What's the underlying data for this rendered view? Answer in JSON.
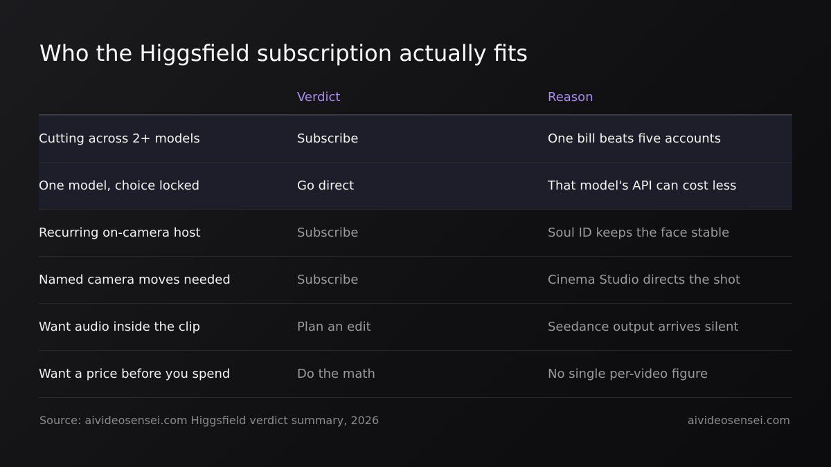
{
  "title": "Who the Higgsfield subscription actually fits",
  "table": {
    "columns": [
      "",
      "Verdict",
      "Reason"
    ],
    "rows": [
      [
        "Cutting across 2+ models",
        "Subscribe",
        "One bill beats five accounts"
      ],
      [
        "One model, choice locked",
        "Go direct",
        "That model's API can cost less"
      ],
      [
        "Recurring on-camera host",
        "Subscribe",
        "Soul ID keeps the face stable"
      ],
      [
        "Named camera moves needed",
        "Subscribe",
        "Cinema Studio directs the shot"
      ],
      [
        "Want audio inside the clip",
        "Plan an edit",
        "Seedance output arrives silent"
      ],
      [
        "Want a price before you spend",
        "Do the math",
        "No single per-video figure"
      ]
    ],
    "highlighted_rows": [
      0,
      1
    ]
  },
  "footer": {
    "source": "Source: aivideosensei.com Higgsfield verdict summary, 2026",
    "site": "aivideosensei.com"
  }
}
